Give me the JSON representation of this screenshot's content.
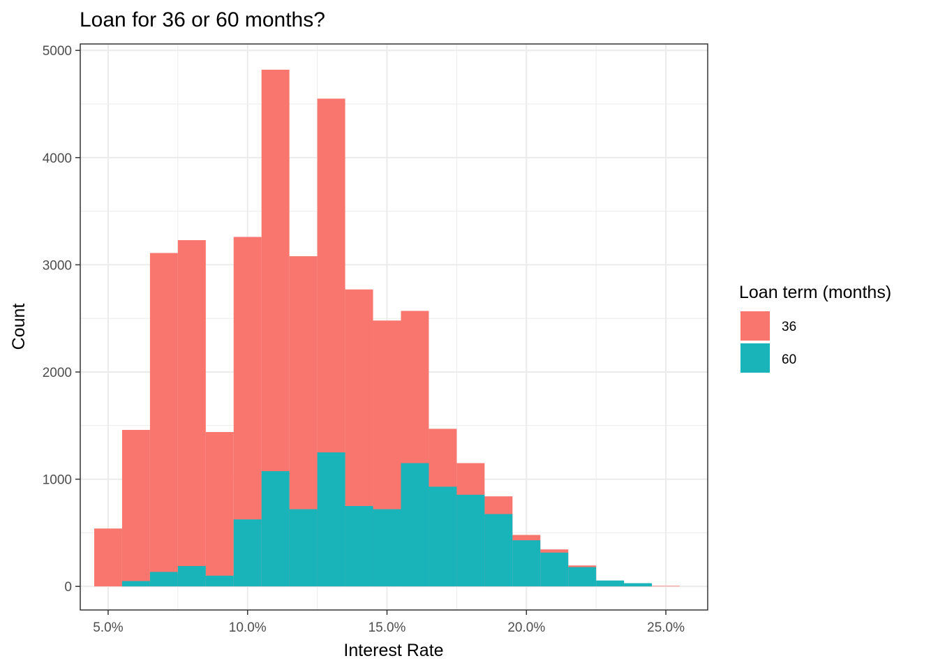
{
  "chart_data": {
    "type": "bar",
    "title": "Loan for 36 or 60 months?",
    "xlabel": "Interest Rate",
    "ylabel": "Count",
    "xlim": [
      4.0,
      26.5
    ],
    "ylim": [
      -220,
      5060
    ],
    "bin_width": 1.0,
    "x_ticks": [
      5,
      10,
      15,
      20,
      25
    ],
    "x_tick_labels": [
      "5.0%",
      "10.0%",
      "15.0%",
      "20.0%",
      "25.0%"
    ],
    "y_ticks": [
      0,
      1000,
      2000,
      3000,
      4000,
      5000
    ],
    "y_tick_labels": [
      "0",
      "1000",
      "2000",
      "3000",
      "4000",
      "5000"
    ],
    "stacked": false,
    "grid": true,
    "legend": {
      "title": "Loan term (months)",
      "position": "right",
      "entries": [
        "36",
        "60"
      ]
    },
    "series": [
      {
        "name": "36",
        "color": "#F8766D",
        "bins": [
          {
            "x": 5,
            "count": 540
          },
          {
            "x": 6,
            "count": 1460
          },
          {
            "x": 7,
            "count": 3110
          },
          {
            "x": 8,
            "count": 3230
          },
          {
            "x": 9,
            "count": 1440
          },
          {
            "x": 10,
            "count": 3260
          },
          {
            "x": 11,
            "count": 4820
          },
          {
            "x": 12,
            "count": 3080
          },
          {
            "x": 13,
            "count": 4550
          },
          {
            "x": 14,
            "count": 2770
          },
          {
            "x": 15,
            "count": 2480
          },
          {
            "x": 16,
            "count": 2570
          },
          {
            "x": 17,
            "count": 1470
          },
          {
            "x": 18,
            "count": 1150
          },
          {
            "x": 19,
            "count": 840
          },
          {
            "x": 20,
            "count": 480
          },
          {
            "x": 21,
            "count": 345
          },
          {
            "x": 22,
            "count": 195
          },
          {
            "x": 23,
            "count": 50
          },
          {
            "x": 24,
            "count": 25
          },
          {
            "x": 25,
            "count": 5
          }
        ]
      },
      {
        "name": "60",
        "color": "#19B4B9",
        "bins": [
          {
            "x": 6,
            "count": 50
          },
          {
            "x": 7,
            "count": 135
          },
          {
            "x": 8,
            "count": 190
          },
          {
            "x": 9,
            "count": 100
          },
          {
            "x": 10,
            "count": 625
          },
          {
            "x": 11,
            "count": 1075
          },
          {
            "x": 12,
            "count": 720
          },
          {
            "x": 13,
            "count": 1250
          },
          {
            "x": 14,
            "count": 750
          },
          {
            "x": 15,
            "count": 720
          },
          {
            "x": 16,
            "count": 1150
          },
          {
            "x": 17,
            "count": 930
          },
          {
            "x": 18,
            "count": 855
          },
          {
            "x": 19,
            "count": 675
          },
          {
            "x": 20,
            "count": 430
          },
          {
            "x": 21,
            "count": 315
          },
          {
            "x": 22,
            "count": 180
          },
          {
            "x": 23,
            "count": 55
          },
          {
            "x": 24,
            "count": 30
          }
        ]
      }
    ]
  }
}
